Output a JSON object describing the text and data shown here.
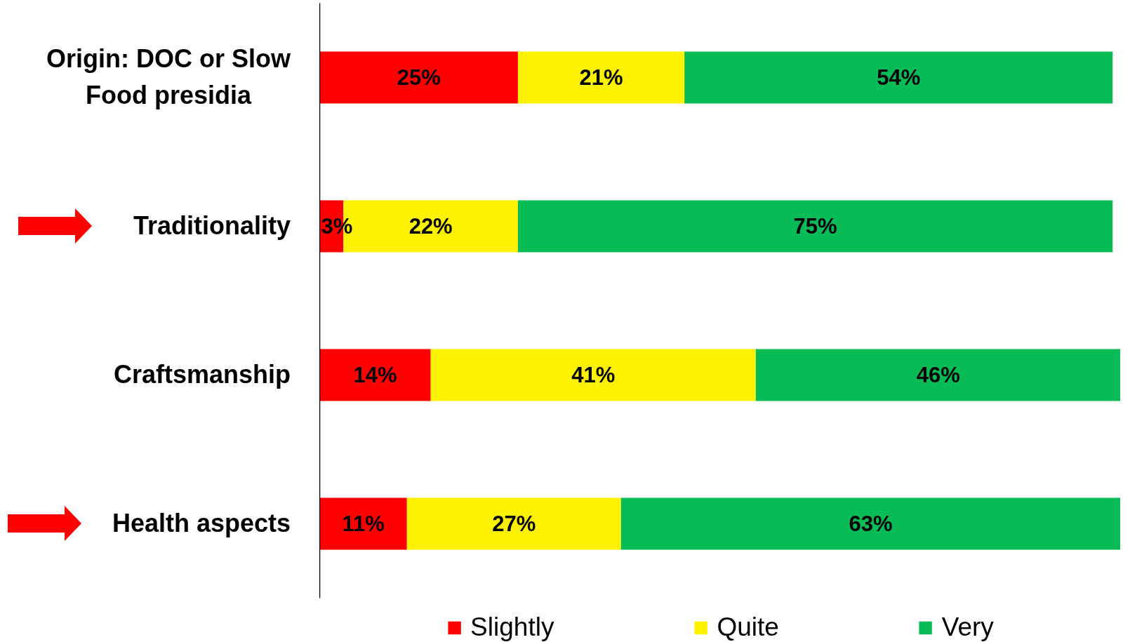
{
  "chart_data": {
    "type": "bar",
    "orientation": "horizontal",
    "stacked": true,
    "categories": [
      "Origin: DOC or Slow Food presidia",
      "Traditionality",
      "Craftsmanship",
      "Health aspects"
    ],
    "series": [
      {
        "name": "Slightly",
        "color": "#fe0000",
        "values": [
          25,
          3,
          14,
          11
        ],
        "value_labels": [
          "25%",
          "3%",
          "14%",
          "11%"
        ]
      },
      {
        "name": "Quite",
        "color": "#fff200",
        "values": [
          21,
          22,
          41,
          27
        ],
        "value_labels": [
          "21%",
          "22%",
          "41%",
          "27%"
        ]
      },
      {
        "name": "Very",
        "color": "#07bb57",
        "values": [
          54,
          75,
          46,
          63
        ],
        "value_labels": [
          "54%",
          "75%",
          "46%",
          "63%"
        ]
      }
    ],
    "xlim": [
      0,
      101
    ],
    "tick_labels": "y",
    "legend": "bottom"
  }
}
